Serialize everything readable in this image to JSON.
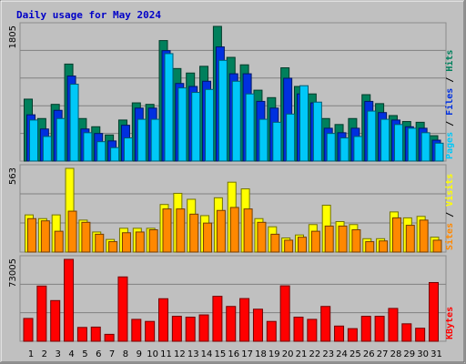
{
  "title": "Daily usage for May 2024",
  "colors": {
    "frame": "#8c8c8c",
    "panel_bg": "#c0c0c0",
    "grid": "#808080",
    "title": "#0000c8",
    "hits": "#00805c",
    "files": "#0030e0",
    "pages": "#00c8f8",
    "visits": "#ffff00",
    "sites": "#ff8800",
    "kbytes": "#ff0000",
    "weekend_day": "#00805c",
    "weekday": "#000000"
  },
  "chart_data": [
    {
      "type": "bar",
      "panel": "requests",
      "ymax_label": "1805",
      "ymax": 1805,
      "legend": [
        "Pages",
        "Files",
        "Hits"
      ],
      "categories": [
        "1",
        "2",
        "3",
        "4",
        "5",
        "6",
        "7",
        "8",
        "9",
        "10",
        "11",
        "12",
        "13",
        "14",
        "15",
        "16",
        "17",
        "18",
        "19",
        "20",
        "21",
        "22",
        "23",
        "24",
        "25",
        "26",
        "27",
        "28",
        "29",
        "30",
        "31"
      ],
      "series": [
        {
          "name": "Hits",
          "values": [
            830,
            570,
            760,
            1300,
            570,
            460,
            350,
            550,
            780,
            760,
            1615,
            1240,
            1180,
            1270,
            1805,
            1390,
            1290,
            950,
            850,
            1250,
            1000,
            900,
            570,
            490,
            570,
            890,
            770,
            610,
            530,
            520,
            340
          ]
        },
        {
          "name": "Files",
          "values": [
            620,
            430,
            680,
            1140,
            430,
            370,
            270,
            480,
            710,
            710,
            1480,
            1040,
            1000,
            1070,
            1530,
            1170,
            1170,
            800,
            710,
            1110,
            900,
            780,
            440,
            380,
            440,
            800,
            650,
            550,
            460,
            440,
            280
          ]
        },
        {
          "name": "Pages",
          "values": [
            550,
            330,
            570,
            1030,
            380,
            260,
            180,
            310,
            560,
            560,
            1440,
            980,
            920,
            960,
            1350,
            1070,
            900,
            560,
            520,
            630,
            1010,
            790,
            370,
            310,
            330,
            670,
            560,
            490,
            440,
            380,
            240
          ]
        }
      ]
    },
    {
      "type": "bar",
      "panel": "visitors",
      "ymax_label": "563",
      "ymax": 563,
      "legend": [
        "Sites",
        "Visits"
      ],
      "categories": [
        "1",
        "2",
        "3",
        "4",
        "5",
        "6",
        "7",
        "8",
        "9",
        "10",
        "11",
        "12",
        "13",
        "14",
        "15",
        "16",
        "17",
        "18",
        "19",
        "20",
        "21",
        "22",
        "23",
        "24",
        "25",
        "26",
        "27",
        "28",
        "29",
        "30",
        "31"
      ],
      "series": [
        {
          "name": "Visits",
          "values": [
            250,
            225,
            250,
            563,
            215,
            135,
            85,
            160,
            160,
            160,
            320,
            395,
            355,
            245,
            365,
            470,
            425,
            225,
            170,
            95,
            115,
            185,
            315,
            205,
            185,
            90,
            90,
            270,
            230,
            240,
            100
          ]
        },
        {
          "name": "Sites",
          "values": [
            225,
            210,
            140,
            275,
            200,
            120,
            70,
            130,
            135,
            150,
            290,
            290,
            255,
            195,
            280,
            300,
            290,
            200,
            120,
            80,
            100,
            140,
            175,
            175,
            150,
            70,
            75,
            230,
            180,
            215,
            80
          ]
        }
      ]
    },
    {
      "type": "bar",
      "panel": "bandwidth",
      "ymax_label": "73005",
      "ymax": 73005,
      "legend": [
        "KBytes"
      ],
      "categories": [
        "1",
        "2",
        "3",
        "4",
        "5",
        "6",
        "7",
        "8",
        "9",
        "10",
        "11",
        "12",
        "13",
        "14",
        "15",
        "16",
        "17",
        "18",
        "19",
        "20",
        "21",
        "22",
        "23",
        "24",
        "25",
        "26",
        "27",
        "28",
        "29",
        "30",
        "31"
      ],
      "series": [
        {
          "name": "KBytes",
          "values": [
            20330,
            49220,
            36260,
            73005,
            12320,
            12620,
            6180,
            57350,
            19520,
            17680,
            37910,
            22240,
            21480,
            23490,
            40050,
            31030,
            38060,
            28580,
            17680,
            49410,
            21480,
            19520,
            31030,
            13540,
            11250,
            22240,
            22240,
            29270,
            15560,
            11610,
            52330
          ]
        }
      ]
    }
  ],
  "day_label_colors": [
    "weekday",
    "weekday",
    "weekday",
    "weekend",
    "weekend",
    "weekday",
    "weekday",
    "weekday",
    "weekday",
    "weekday",
    "weekend",
    "weekend",
    "weekday",
    "weekday",
    "weekday",
    "weekday",
    "weekday",
    "weekend",
    "weekend",
    "weekday",
    "weekday",
    "weekday",
    "weekday",
    "weekday",
    "weekend",
    "weekend",
    "weekday",
    "weekday",
    "weekday",
    "weekday",
    "weekday"
  ]
}
